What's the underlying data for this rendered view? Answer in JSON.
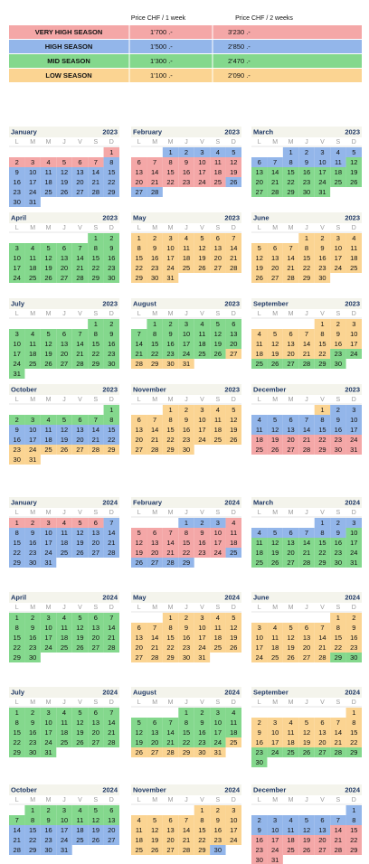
{
  "price_table": {
    "headers": [
      "Price CHF / 1 week",
      "Price CHF / 2  weeks"
    ],
    "rows": [
      {
        "season": "VERY HIGH SEASON",
        "week1": "1'700 .-",
        "week2": "3'230 .-",
        "code": "V"
      },
      {
        "season": "HIGH SEASON",
        "week1": "1'500 .-",
        "week2": "2'850 .-",
        "code": "H"
      },
      {
        "season": "MID SEASON",
        "week1": "1'300 .-",
        "week2": "2'470 .-",
        "code": "M"
      },
      {
        "season": "LOW SEASON",
        "week1": "1'100 .-",
        "week2": "2'090 .-",
        "code": "L"
      }
    ]
  },
  "season_colors": {
    "V": "#f4a7a7",
    "H": "#93b6ea",
    "M": "#84d88d",
    "L": "#fbd492"
  },
  "weekdays": [
    "L",
    "M",
    "M",
    "J",
    "V",
    "S",
    "D"
  ],
  "calendars": [
    {
      "month": "January",
      "year": "2023",
      "days": [
        1,
        2,
        3,
        4,
        5,
        6,
        7,
        8,
        9,
        10,
        11,
        12,
        13,
        14,
        15,
        16,
        17,
        18,
        19,
        20,
        21,
        22,
        23,
        24,
        25,
        26,
        27,
        28,
        29,
        30,
        31
      ],
      "seasons": "VVVVVVVHHHHHHHHHHHHHHHHHHHHHHHH"
    },
    {
      "month": "February",
      "year": "2023",
      "days": [
        1,
        2,
        3,
        4,
        5,
        6,
        7,
        8,
        9,
        10,
        11,
        12,
        13,
        14,
        15,
        16,
        17,
        18,
        19,
        20,
        21,
        22,
        23,
        24,
        25,
        26,
        27,
        28
      ],
      "seasons": "HHHHHVVVVVVVVVVVVVVVVVVVVHHH"
    },
    {
      "month": "March",
      "year": "2023",
      "days": [
        1,
        2,
        3,
        4,
        5,
        6,
        7,
        8,
        9,
        10,
        11,
        12,
        13,
        14,
        15,
        16,
        17,
        18,
        19,
        20,
        21,
        22,
        23,
        24,
        25,
        26,
        27,
        28,
        29,
        30,
        31
      ],
      "seasons": "HHHHHHHHHHHMMMMMMMMMMMMMMMMMMMM"
    },
    {
      "month": "April",
      "year": "2023",
      "days": [
        1,
        2,
        3,
        4,
        5,
        6,
        7,
        8,
        9,
        10,
        11,
        12,
        13,
        14,
        15,
        16,
        17,
        18,
        19,
        20,
        21,
        22,
        23,
        24,
        25,
        26,
        27,
        28,
        29,
        30
      ],
      "seasons": "MMMMMMMMMMMMMMMMMMMMMMMMMMMMMM"
    },
    {
      "month": "May",
      "year": "2023",
      "days": [
        1,
        2,
        3,
        4,
        5,
        6,
        7,
        8,
        9,
        10,
        11,
        12,
        13,
        14,
        15,
        16,
        17,
        18,
        19,
        20,
        21,
        22,
        23,
        24,
        25,
        26,
        27,
        28,
        29,
        30,
        31
      ],
      "seasons": "LLLLLLLLLLLLLLLLLLLLLLLLLLLLLLL"
    },
    {
      "month": "June",
      "year": "2023",
      "days": [
        1,
        2,
        3,
        4,
        5,
        6,
        7,
        8,
        9,
        10,
        11,
        12,
        13,
        14,
        15,
        16,
        17,
        18,
        19,
        20,
        21,
        22,
        23,
        24,
        25,
        26,
        27,
        28,
        29,
        30
      ],
      "seasons": "LLLLLLLLLLLLLLLLLLLLLLLLLLLLLL"
    },
    {
      "month": "July",
      "year": "2023",
      "days": [
        1,
        2,
        3,
        4,
        5,
        6,
        7,
        8,
        9,
        10,
        11,
        12,
        13,
        14,
        15,
        16,
        17,
        18,
        19,
        20,
        21,
        22,
        23,
        24,
        25,
        26,
        27,
        28,
        29,
        30,
        31
      ],
      "seasons": "MMMMMMMMMMMMMMMMMMMMMMMMMMMMMMM"
    },
    {
      "month": "August",
      "year": "2023",
      "days": [
        1,
        2,
        3,
        4,
        5,
        6,
        7,
        8,
        9,
        10,
        11,
        12,
        13,
        14,
        15,
        16,
        17,
        18,
        19,
        20,
        21,
        22,
        23,
        24,
        25,
        26,
        27,
        28,
        29,
        30,
        31
      ],
      "seasons": "MMMMMMMMMMMMMMMMMMMMMMMMMMLLLLL"
    },
    {
      "month": "September",
      "year": "2023",
      "days": [
        1,
        2,
        3,
        4,
        5,
        6,
        7,
        8,
        9,
        10,
        11,
        12,
        13,
        14,
        15,
        16,
        17,
        18,
        19,
        20,
        21,
        22,
        23,
        24,
        25,
        26,
        27,
        28,
        29,
        30
      ],
      "seasons": "LLLLLLLLLLLLLLLLLLLLLLMMMMMMMM"
    },
    {
      "month": "October",
      "year": "2023",
      "days": [
        1,
        2,
        3,
        4,
        5,
        6,
        7,
        8,
        9,
        10,
        11,
        12,
        13,
        14,
        15,
        16,
        17,
        18,
        19,
        20,
        21,
        22,
        23,
        24,
        25,
        26,
        27,
        28,
        29,
        30,
        31
      ],
      "seasons": "MMMMMMMMHHHHHHHHHHHHHHLLLLLLLLL"
    },
    {
      "month": "November",
      "year": "2023",
      "days": [
        1,
        2,
        3,
        4,
        5,
        6,
        7,
        8,
        9,
        10,
        11,
        12,
        13,
        14,
        15,
        16,
        17,
        18,
        19,
        20,
        21,
        22,
        23,
        24,
        25,
        26,
        27,
        28,
        29,
        30
      ],
      "seasons": "LLLLLLLLLLLLLLLLLLLLLLLLLLLLLL"
    },
    {
      "month": "December",
      "year": "2023",
      "days": [
        1,
        2,
        3,
        4,
        5,
        6,
        7,
        8,
        9,
        10,
        11,
        12,
        13,
        14,
        15,
        16,
        17,
        18,
        19,
        20,
        21,
        22,
        23,
        24,
        25,
        26,
        27,
        28,
        29,
        30,
        31
      ],
      "seasons": "LHHHHHHHHHHHHHHHHVVVVVVVVVVVVVV"
    },
    {
      "month": "January",
      "year": "2024",
      "days": [
        1,
        2,
        3,
        4,
        5,
        6,
        7,
        8,
        9,
        10,
        11,
        12,
        13,
        14,
        15,
        16,
        17,
        18,
        19,
        20,
        21,
        22,
        23,
        24,
        25,
        26,
        27,
        28,
        29,
        30,
        31
      ],
      "seasons": "VVVVVVHHHHHHHHHHHHHHHHHHHHHHHHH"
    },
    {
      "month": "February",
      "year": "2024",
      "days": [
        1,
        2,
        3,
        4,
        5,
        6,
        7,
        8,
        9,
        10,
        11,
        12,
        13,
        14,
        15,
        16,
        17,
        18,
        19,
        20,
        21,
        22,
        23,
        24,
        25,
        26,
        27,
        28,
        29
      ],
      "seasons": "HHHVVVVVVVVVVVVVVVVVVVVVHHHHH"
    },
    {
      "month": "March",
      "year": "2024",
      "days": [
        1,
        2,
        3,
        4,
        5,
        6,
        7,
        8,
        9,
        10,
        11,
        12,
        13,
        14,
        15,
        16,
        17,
        18,
        19,
        20,
        21,
        22,
        23,
        24,
        25,
        26,
        27,
        28,
        29,
        30,
        31
      ],
      "seasons": "HHHHHHHHHMMMMMMMMMMMMMMMMMMMMMM"
    },
    {
      "month": "April",
      "year": "2024",
      "days": [
        1,
        2,
        3,
        4,
        5,
        6,
        7,
        8,
        9,
        10,
        11,
        12,
        13,
        14,
        15,
        16,
        17,
        18,
        19,
        20,
        21,
        22,
        23,
        24,
        25,
        26,
        27,
        28,
        29,
        30
      ],
      "seasons": "MMMMMMMMMMMMMMMMMMMMMMMMMMMMMM"
    },
    {
      "month": "May",
      "year": "2024",
      "days": [
        1,
        2,
        3,
        4,
        5,
        6,
        7,
        8,
        9,
        10,
        11,
        12,
        13,
        14,
        15,
        16,
        17,
        18,
        19,
        20,
        21,
        22,
        23,
        24,
        25,
        26,
        27,
        28,
        29,
        30,
        31
      ],
      "seasons": "LLLLLLLLLLLLLLLLLLLLLLLLLLLLLLL"
    },
    {
      "month": "June",
      "year": "2024",
      "days": [
        1,
        2,
        3,
        4,
        5,
        6,
        7,
        8,
        9,
        10,
        11,
        12,
        13,
        14,
        15,
        16,
        17,
        18,
        19,
        20,
        21,
        22,
        23,
        24,
        25,
        26,
        27,
        28,
        29,
        30
      ],
      "seasons": "LLLLLLLLLLLLLLLLLLLLLLLLLLLLMM"
    },
    {
      "month": "July",
      "year": "2024",
      "days": [
        1,
        2,
        3,
        4,
        5,
        6,
        7,
        8,
        9,
        10,
        11,
        12,
        13,
        14,
        15,
        16,
        17,
        18,
        19,
        20,
        21,
        22,
        23,
        24,
        25,
        26,
        27,
        28,
        29,
        30,
        31
      ],
      "seasons": "MMMMMMMMMMMMMMMMMMMMMMMMMMMMMMM"
    },
    {
      "month": "August",
      "year": "2024",
      "days": [
        1,
        2,
        3,
        4,
        5,
        6,
        7,
        8,
        9,
        10,
        11,
        12,
        13,
        14,
        15,
        16,
        17,
        18,
        19,
        20,
        21,
        22,
        23,
        24,
        25,
        26,
        27,
        28,
        29,
        30,
        31
      ],
      "seasons": "MMMMMMMMMMMMMMMMMMMMMMMMLLLLLLL"
    },
    {
      "month": "September",
      "year": "2024",
      "days": [
        1,
        2,
        3,
        4,
        5,
        6,
        7,
        8,
        9,
        10,
        11,
        12,
        13,
        14,
        15,
        16,
        17,
        18,
        19,
        20,
        21,
        22,
        23,
        24,
        25,
        26,
        27,
        28,
        29,
        30
      ],
      "seasons": "LLLLLLLLLLLLLLLLLLLLLLMMMMMMMM"
    },
    {
      "month": "October",
      "year": "2024",
      "days": [
        1,
        2,
        3,
        4,
        5,
        6,
        7,
        8,
        9,
        10,
        11,
        12,
        13,
        14,
        15,
        16,
        17,
        18,
        19,
        20,
        21,
        22,
        23,
        24,
        25,
        26,
        27,
        28,
        29,
        30,
        31
      ],
      "seasons": "MMMMMMMMMMMMMHHHHHHHHHHHHHHHHHH"
    },
    {
      "month": "November",
      "year": "2024",
      "days": [
        1,
        2,
        3,
        4,
        5,
        6,
        7,
        8,
        9,
        10,
        11,
        12,
        13,
        14,
        15,
        16,
        17,
        18,
        19,
        20,
        21,
        22,
        23,
        24,
        25,
        26,
        27,
        28,
        29,
        30
      ],
      "seasons": "LLLLLLLLLLLLLLLLLLLLLLLLLLLLLH"
    },
    {
      "month": "December",
      "year": "2024",
      "days": [
        1,
        2,
        3,
        4,
        5,
        6,
        7,
        8,
        9,
        10,
        11,
        12,
        13,
        14,
        15,
        16,
        17,
        18,
        19,
        20,
        21,
        22,
        23,
        24,
        25,
        26,
        27,
        28,
        29,
        30,
        31
      ],
      "seasons": "HHHHHHHHHHHHHVVVVVVVVVVVVVVVVVV"
    }
  ]
}
